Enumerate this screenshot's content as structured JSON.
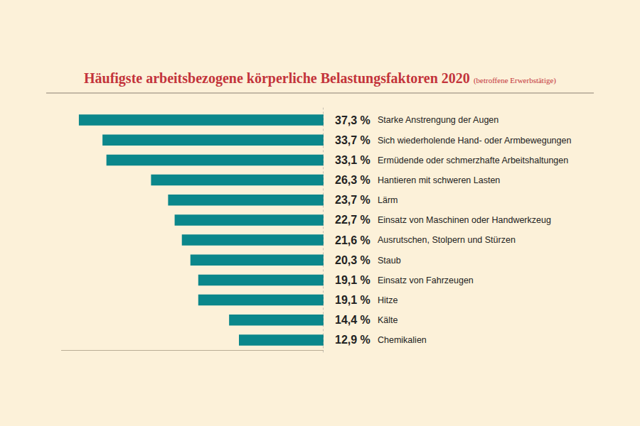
{
  "chart_data": {
    "type": "bar",
    "orientation": "horizontal",
    "title": "Häufigste arbeitsbezogene körperliche Belastungsfaktoren 2020",
    "subtitle": "(betroffene Erwerbstätige)",
    "categories": [
      "Starke Anstrengung der Augen",
      "Sich wiederholende Hand- oder Armbewegungen",
      "Ermüdende oder schmerzhafte Arbeitshaltungen",
      "Hantieren mit schweren Lasten",
      "Lärm",
      "Einsatz von Maschinen oder Handwerkzeug",
      "Ausrutschen, Stolpern und Stürzen",
      "Staub",
      "Einsatz von Fahrzeugen",
      "Hitze",
      "Kälte",
      "Chemikalien"
    ],
    "values": [
      37.3,
      33.7,
      33.1,
      26.3,
      23.7,
      22.7,
      21.6,
      20.3,
      19.1,
      19.1,
      14.4,
      12.9
    ],
    "value_labels": [
      "37,3 %",
      "33,7 %",
      "33,1 %",
      "26,3 %",
      "23,7 %",
      "22,7 %",
      "21,6 %",
      "20,3 %",
      "19,1 %",
      "19,1 %",
      "14,4 %",
      "12,9 %"
    ],
    "color": "#0b878b",
    "xlim": [
      0,
      40
    ],
    "grid": false,
    "data_labels": true,
    "tick_labels": "y"
  }
}
